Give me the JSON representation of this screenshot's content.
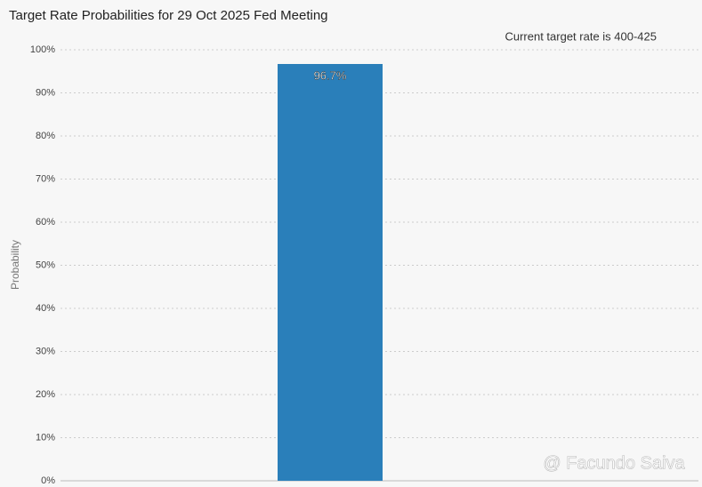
{
  "chart_data": {
    "type": "bar",
    "title": "Target Rate Probabilities for 29 Oct 2025 Fed Meeting",
    "annotation": "Current target rate is 400-425",
    "ylabel": "Probability",
    "categories": [
      null
    ],
    "values": [
      96.7
    ],
    "value_labels": [
      "96.7%"
    ],
    "color": "#2a7fba",
    "ylim": [
      0,
      100
    ],
    "yticks": [
      {
        "value": 0,
        "label": "0%"
      },
      {
        "value": 10,
        "label": "10%"
      },
      {
        "value": 20,
        "label": "20%"
      },
      {
        "value": 30,
        "label": "30%"
      },
      {
        "value": 40,
        "label": "40%"
      },
      {
        "value": 50,
        "label": "50%"
      },
      {
        "value": 60,
        "label": "60%"
      },
      {
        "value": 70,
        "label": "70%"
      },
      {
        "value": 80,
        "label": "80%"
      },
      {
        "value": 90,
        "label": "90%"
      },
      {
        "value": 100,
        "label": "100%"
      }
    ],
    "grid": true,
    "watermark": "@ Facundo Saiva"
  }
}
